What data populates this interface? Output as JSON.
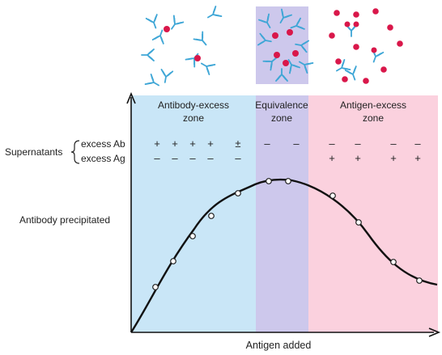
{
  "zones": {
    "antibody_excess": {
      "line1": "Antibody-excess",
      "line2": "zone"
    },
    "equivalence": {
      "line1": "Equivalence",
      "line2": "zone"
    },
    "antigen_excess": {
      "line1": "Antigen-excess",
      "line2": "zone"
    }
  },
  "supernatants": {
    "label": "Supernatants",
    "ab_label": "excess Ab",
    "ag_label": "excess Ag",
    "ab_signs": [
      "+",
      "+",
      "+",
      "+",
      "±",
      "–",
      "–",
      "–",
      "–",
      "–",
      "–"
    ],
    "ag_signs": [
      "–",
      "–",
      "–",
      "–",
      "–",
      "",
      "",
      "+",
      "+",
      "+",
      "+"
    ]
  },
  "y_axis_label": "Antibody precipitated",
  "x_axis_label": "Antigen added",
  "colors": {
    "antibody_zone": "#c9e6f7",
    "equivalence_zone": "#cdc8ec",
    "antigen_zone": "#fbd1de",
    "antibody": "#3ea6d6",
    "antigen": "#d9174a",
    "curve": "#111111"
  },
  "icons": [
    "antibody-y-icon",
    "antigen-dot-icon",
    "lattice-complex-icon"
  ]
}
